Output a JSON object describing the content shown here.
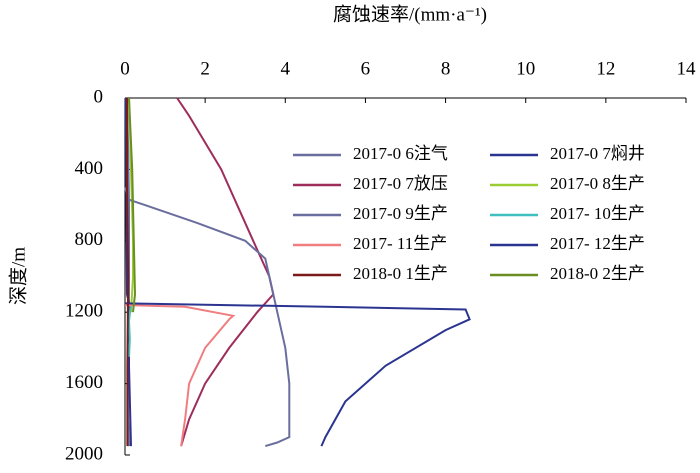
{
  "chart_data": {
    "type": "line",
    "x_label": "深度/m",
    "y_label": "腐蚀速率/(mm·a⁻¹)",
    "xlim": [
      0,
      2000
    ],
    "xticks": [
      0,
      400,
      800,
      1200,
      1600,
      2000
    ],
    "ylim": [
      0,
      14
    ],
    "yticks": [
      0,
      2,
      4,
      6,
      8,
      10,
      12,
      14
    ],
    "series": [
      {
        "name": "2017-0 6注气",
        "color": "#6a6e9e",
        "x": [
          0,
          300,
          600,
          900,
          1200,
          1500,
          1800,
          1950
        ],
        "values": [
          0.05,
          0.08,
          0.1,
          0.1,
          0.1,
          0.08,
          0.08,
          0.1
        ]
      },
      {
        "name": "2017-0 7焖井",
        "color": "#2b3590",
        "x": [
          0,
          400,
          800,
          1100,
          1150,
          1500,
          1950
        ],
        "values": [
          0.02,
          0.03,
          0.04,
          0.05,
          0.1,
          0.1,
          0.15
        ]
      },
      {
        "name": "2017-0 7放压",
        "color": "#9e2d5c",
        "x": [
          0,
          100,
          400,
          800,
          1000,
          1100,
          1200,
          1400,
          1600,
          1800,
          1950
        ],
        "values": [
          1.3,
          1.6,
          2.4,
          3.2,
          3.6,
          3.7,
          3.3,
          2.6,
          2.0,
          1.6,
          1.4
        ]
      },
      {
        "name": "2017-0 8生产",
        "color": "#9acd32",
        "x": [
          0,
          400,
          800,
          1000,
          1200
        ],
        "values": [
          0.1,
          0.15,
          0.2,
          0.2,
          0.15
        ]
      },
      {
        "name": "2017-0 9生产",
        "color": "#6a6e9e",
        "x": [
          500,
          570,
          600,
          700,
          800,
          900,
          1000,
          1200,
          1400,
          1600,
          1800,
          1900,
          1930,
          1950
        ],
        "values": [
          0,
          0.1,
          0.5,
          1.8,
          3.0,
          3.5,
          3.6,
          3.8,
          4.0,
          4.1,
          4.1,
          4.1,
          3.8,
          3.5
        ]
      },
      {
        "name": "2017- 10生产",
        "color": "#3fbfbf",
        "x": [
          1150,
          1250,
          1350,
          1450
        ],
        "values": [
          0.15,
          0.1,
          0.12,
          0.1
        ]
      },
      {
        "name": "2017- 11生产",
        "color": "#f07d80",
        "x": [
          1160,
          1170,
          1220,
          1240,
          1400,
          1600,
          1800,
          1950
        ],
        "values": [
          0,
          1.5,
          2.7,
          2.6,
          2.0,
          1.6,
          1.5,
          1.4
        ]
      },
      {
        "name": "2017- 12生产",
        "color": "#2b3590",
        "x": [
          1150,
          1170,
          1185,
          1240,
          1300,
          1500,
          1700,
          1900,
          1950
        ],
        "values": [
          0,
          5.0,
          8.5,
          8.6,
          8.0,
          6.5,
          5.5,
          5.0,
          4.9
        ]
      },
      {
        "name": "2018-0 1生产",
        "color": "#7b1a1a",
        "x": [
          0,
          500,
          1000,
          1500,
          1950
        ],
        "values": [
          0.05,
          0.05,
          0.08,
          0.06,
          0.06
        ]
      },
      {
        "name": "2018-0 2生产",
        "color": "#6b8e23",
        "x": [
          0,
          400,
          800,
          1100,
          1200
        ],
        "values": [
          0.1,
          0.18,
          0.22,
          0.25,
          0.2
        ]
      }
    ]
  }
}
